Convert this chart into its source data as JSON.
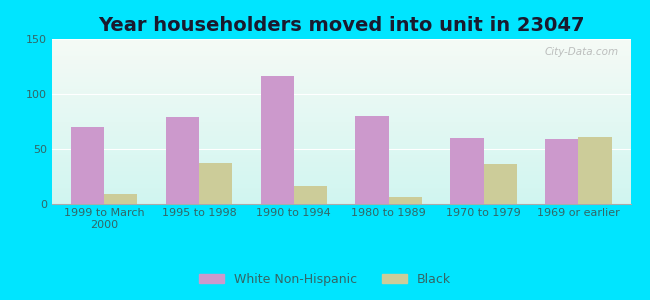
{
  "title": "Year householders moved into unit in 23047",
  "categories": [
    "1999 to March\n2000",
    "1995 to 1998",
    "1990 to 1994",
    "1980 to 1989",
    "1970 to 1979",
    "1969 or earlier"
  ],
  "white_values": [
    70,
    79,
    116,
    80,
    60,
    59
  ],
  "black_values": [
    9,
    37,
    16,
    6,
    36,
    61
  ],
  "white_color": "#cc99cc",
  "black_color": "#cccc99",
  "ylim": [
    0,
    150
  ],
  "yticks": [
    0,
    50,
    100,
    150
  ],
  "background_outer": "#00e5ff",
  "grid_color": "#ffffff",
  "bar_width": 0.35,
  "title_fontsize": 14,
  "tick_fontsize": 8,
  "legend_fontsize": 9,
  "watermark": "City-Data.com",
  "tick_color": "#336666",
  "title_color": "#1a1a2e"
}
